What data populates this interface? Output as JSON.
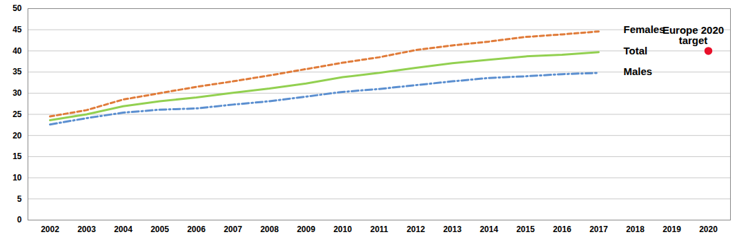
{
  "chart_data": {
    "type": "line",
    "categories": [
      "2002",
      "2003",
      "2004",
      "2005",
      "2006",
      "2007",
      "2008",
      "2009",
      "2010",
      "2011",
      "2012",
      "2013",
      "2014",
      "2015",
      "2016",
      "2017",
      "2018",
      "2019",
      "2020"
    ],
    "series": [
      {
        "name": "Females",
        "color": "#e07b39",
        "line_style": "dashed",
        "values": [
          24.5,
          26,
          28.5,
          30,
          31.5,
          32.8,
          34.2,
          35.7,
          37.2,
          38.5,
          40.2,
          41.3,
          42.2,
          43.3,
          43.9,
          44.6,
          null,
          null,
          null
        ]
      },
      {
        "name": "Total",
        "color": "#92d050",
        "line_style": "solid",
        "values": [
          23.6,
          25,
          26.9,
          28.1,
          29,
          30.1,
          31.1,
          32.3,
          33.8,
          34.8,
          36,
          37.1,
          37.9,
          38.7,
          39.1,
          39.7,
          null,
          null,
          null
        ]
      },
      {
        "name": "Males",
        "color": "#5b8fd0",
        "line_style": "dashdot",
        "values": [
          22.6,
          24.1,
          25.4,
          26.1,
          26.4,
          27.3,
          28.1,
          29.2,
          30.3,
          31,
          31.9,
          32.8,
          33.6,
          34,
          34.5,
          34.8,
          null,
          null,
          null
        ]
      }
    ],
    "annotations": [
      {
        "text": "Europe 2020 target",
        "x": "2020",
        "value": 40,
        "color": "#e8102a",
        "marker": "circle"
      }
    ],
    "ylim": [
      0,
      50
    ],
    "yticks": [
      0,
      5,
      10,
      15,
      20,
      25,
      30,
      35,
      40,
      45,
      50
    ],
    "grid": true
  }
}
